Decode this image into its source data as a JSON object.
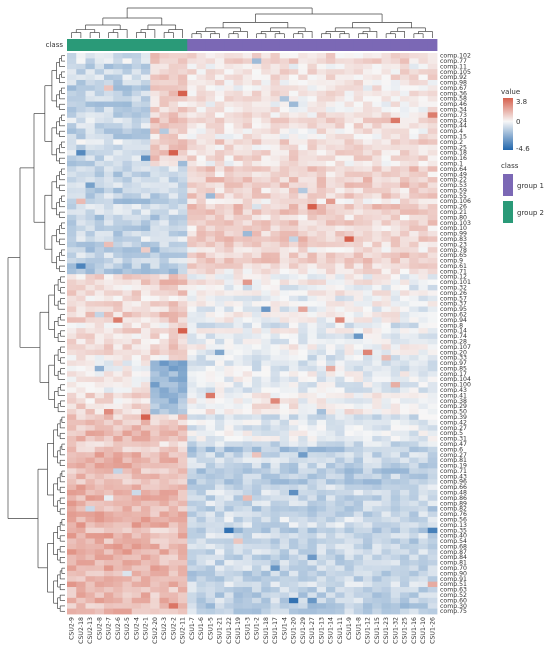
{
  "chart_data": {
    "type": "heatmap",
    "title": "",
    "annotation_label": "class",
    "rows": [
      "comp.102",
      "comp.77",
      "comp.11",
      "comp.105",
      "comp.92",
      "comp.98",
      "comp.67",
      "comp.36",
      "comp.58",
      "comp.46",
      "comp.34",
      "comp.73",
      "comp.24",
      "comp.44",
      "comp.4",
      "comp.15",
      "comp.2",
      "comp.25",
      "comp.18",
      "comp.16",
      "comp.1",
      "comp.64",
      "comp.49",
      "comp.22",
      "comp.53",
      "comp.59",
      "comp.55",
      "comp.106",
      "comp.26",
      "comp.21",
      "comp.80",
      "comp.103",
      "comp.10",
      "comp.99",
      "comp.83",
      "comp.23",
      "comp.78",
      "comp.65",
      "comp.9",
      "comp.61",
      "comp.71",
      "comp.12",
      "comp.101",
      "comp.32",
      "comp.26",
      "comp.57",
      "comp.37",
      "comp.95",
      "comp.62",
      "comp.94",
      "comp.8",
      "comp.14",
      "comp.74",
      "comp.28",
      "comp.107",
      "comp.20",
      "comp.33",
      "comp.97",
      "comp.85",
      "comp.17",
      "comp.104",
      "comp.100",
      "comp.43",
      "comp.41",
      "comp.38",
      "comp.29",
      "comp.50",
      "comp.39",
      "comp.42",
      "comp.27",
      "comp.5",
      "comp.31",
      "comp.47",
      "comp.6",
      "comp.27",
      "comp.81",
      "comp.19",
      "comp.71",
      "comp.43",
      "comp.96",
      "comp.66",
      "comp.48",
      "comp.86",
      "comp.89",
      "comp.82",
      "comp.76",
      "comp.56",
      "comp.13",
      "comp.35",
      "comp.40",
      "comp.54",
      "comp.68",
      "comp.87",
      "comp.84",
      "comp.81",
      "comp.70",
      "comp.90",
      "comp.91",
      "comp.51",
      "comp.63",
      "comp.52",
      "comp.60",
      "comp.30",
      "comp.75"
    ],
    "columns": [
      "CSU2-9",
      "CSU2-18",
      "CSU2-13",
      "CSU2-8",
      "CSU2-7",
      "CSU2-6",
      "CSU2-5",
      "CSU2-4",
      "CSU2-1",
      "CSU2-20",
      "CSU2-3",
      "CSU2-2",
      "CSU2-11",
      "CSU1-7",
      "CSU1-6",
      "CSU1-5",
      "CSU1-21",
      "CSU1-22",
      "CSU1-19",
      "CSU1-3",
      "CSU1-2",
      "CSU1-18",
      "CSU1-17",
      "CSU1-4",
      "CSU1-20",
      "CSU1-29",
      "CSU1-27",
      "CSU1-13",
      "CSU1-14",
      "CSU1-11",
      "CSU1-9",
      "CSU1-8",
      "CSU1-12",
      "CSU1-15",
      "CSU1-23",
      "CSU1-32",
      "CSU1-25",
      "CSU1-16",
      "CSU1-10",
      "CSU1-26"
    ],
    "column_groups": [
      "group 2",
      "group 2",
      "group 2",
      "group 2",
      "group 2",
      "group 2",
      "group 2",
      "group 2",
      "group 2",
      "group 2",
      "group 2",
      "group 2",
      "group 2",
      "group 1",
      "group 1",
      "group 1",
      "group 1",
      "group 1",
      "group 1",
      "group 1",
      "group 1",
      "group 1",
      "group 1",
      "group 1",
      "group 1",
      "group 1",
      "group 1",
      "group 1",
      "group 1",
      "group 1",
      "group 1",
      "group 1",
      "group 1",
      "group 1",
      "group 1",
      "group 1",
      "group 1",
      "group 1",
      "group 1",
      "group 1"
    ],
    "row_blocks": [
      {
        "from": 0,
        "to": 20,
        "group2_left": -1.0,
        "group2_right": 1.0,
        "group1": 0.5
      },
      {
        "from": 21,
        "to": 40,
        "group2_left": -1.2,
        "group2_right": -1.2,
        "group1": 0.8
      },
      {
        "from": 41,
        "to": 56,
        "group2_left": 0.6,
        "group2_right": 0.8,
        "group1": -0.2
      },
      {
        "from": 57,
        "to": 66,
        "group2_left": 0.4,
        "group2_right": -2.0,
        "group1": -0.1
      },
      {
        "from": 67,
        "to": 72,
        "group2_left": 1.2,
        "group2_right": 1.0,
        "group1": -0.6
      },
      {
        "from": 73,
        "to": 103,
        "group2_left": 1.6,
        "group2_right": 1.4,
        "group1": -1.1
      }
    ],
    "color_scale": {
      "min": -4.6,
      "mid": 0,
      "max": 3.8,
      "low_color": "#2166ac",
      "mid_color": "#f7f7f7",
      "high_color": "#d6604d"
    },
    "legend": {
      "value_title": "value",
      "value_ticks": [
        "3.8",
        "0",
        "-4.6"
      ],
      "class_title": "class",
      "classes": [
        {
          "name": "group 1",
          "color": "#7b68b5"
        },
        {
          "name": "group 2",
          "color": "#2a9a78"
        }
      ]
    }
  }
}
